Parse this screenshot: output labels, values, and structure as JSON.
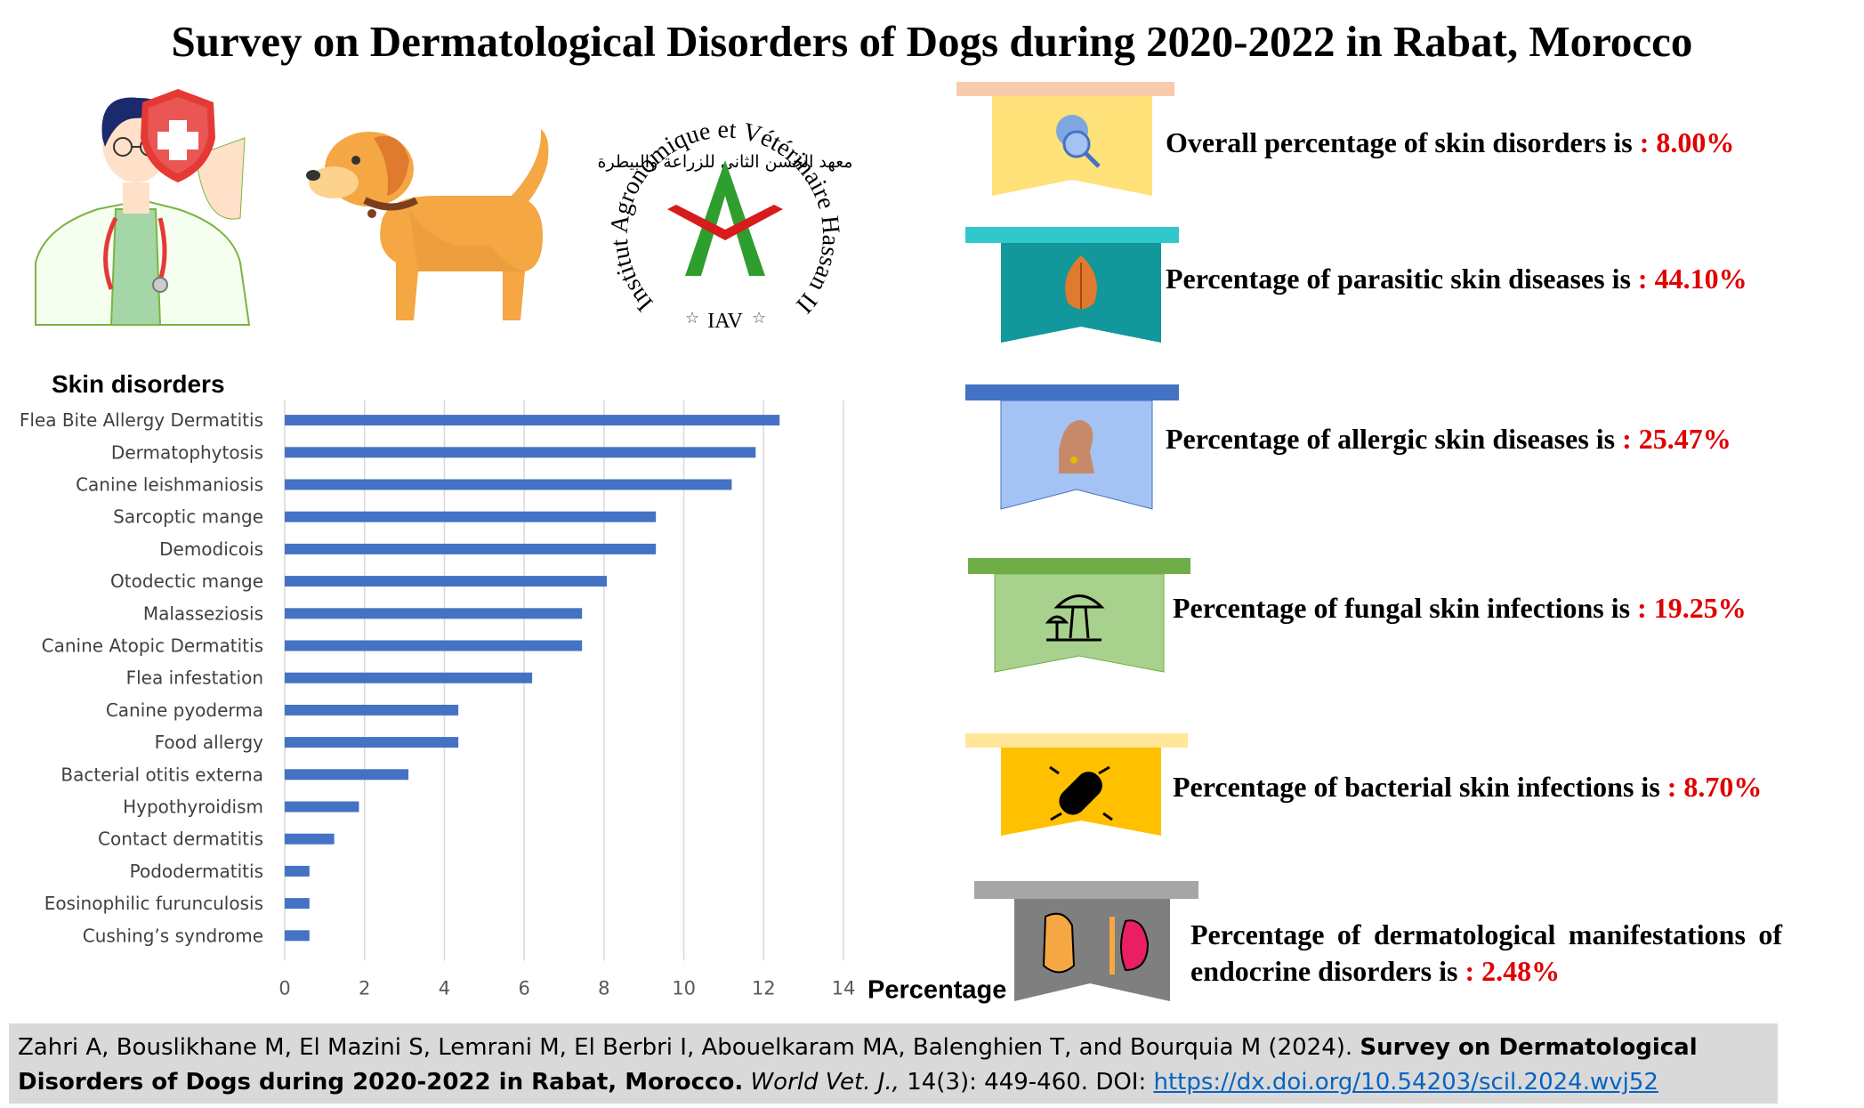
{
  "title": "Survey on Dermatological Disorders of Dogs during 2020-2022 in Rabat, Morocco",
  "logo": {
    "text_ring": "Institut Agronomique et Vétérinaire Hassan II",
    "arabic_text": "معهد الحسن الثاني للزراعة والبيطرة",
    "abbreviation": "IAV"
  },
  "chart_data": {
    "type": "bar",
    "orientation": "horizontal",
    "title": "Skin disorders",
    "xlabel": "Percentage",
    "xlim": [
      0,
      14
    ],
    "xticks": [
      "0",
      "2",
      "4",
      "6",
      "8",
      "10",
      "12",
      "14"
    ],
    "grid": true,
    "bar_color": "#4472c4",
    "categories": [
      "Flea Bite Allergy Dermatitis",
      "Dermatophytosis",
      "Canine leishmaniosis",
      "Sarcoptic mange",
      "Demodicois",
      "Otodectic mange",
      "Malasseziosis",
      "Canine Atopic Dermatitis",
      "Flea infestation",
      "Canine pyoderma",
      "Food allergy",
      "Bacterial otitis externa",
      "Hypothyroidism",
      "Contact dermatitis",
      "Pododermatitis",
      "Eosinophilic furunculosis",
      "Cushing’s syndrome"
    ],
    "values": [
      12.4,
      11.8,
      11.2,
      9.3,
      9.3,
      8.07,
      7.45,
      7.45,
      6.2,
      4.35,
      4.35,
      3.1,
      1.86,
      1.24,
      0.62,
      0.62,
      0.62
    ]
  },
  "stats": [
    {
      "label": "Overall percentage of skin disorders is ",
      "value": ": 8.00%",
      "color": "#ffe17a"
    },
    {
      "label": "Percentage of parasitic skin diseases is ",
      "value": ": 44.10%",
      "color": "#12979a"
    },
    {
      "label": "Percentage of allergic skin diseases is ",
      "value": ": 25.47%",
      "color": "#a4c2f4"
    },
    {
      "label": "Percentage of fungal skin infections is ",
      "value": ": 19.25%",
      "color": "#a9d18e"
    },
    {
      "label": "Percentage of bacterial skin infections is ",
      "value": ": 8.70%",
      "color": "#ffc000"
    },
    {
      "label": "Percentage of dermatological manifestations of endocrine disorders is ",
      "value": ": 2.48%",
      "color": "#7f7f7f"
    }
  ],
  "citation": {
    "authors": "Zahri A, Bouslikhane M, El Mazini S, Lemrani M, El Berbri I, Abouelkaram MA, Balenghien T, and Bourquia M (2024). ",
    "title": "Survey on Dermatological Disorders of Dogs during 2020-2022 in Rabat, Morocco.",
    "journal": "World Vet. J.,",
    "volume": " 14(3): 449-460. DOI: ",
    "doi": "https://dx.doi.org/10.54203/scil.2024.wvj52"
  }
}
